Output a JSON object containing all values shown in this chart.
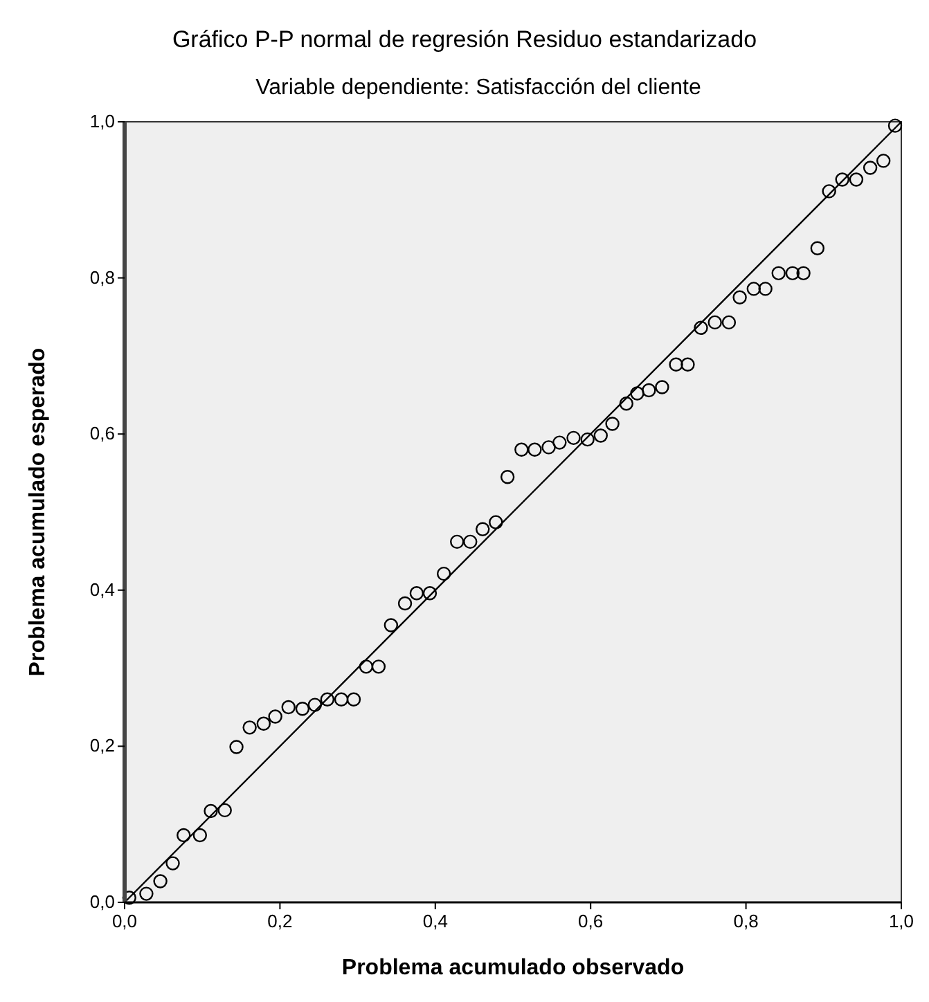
{
  "chart_data": {
    "type": "scatter",
    "title": "Gráfico P-P normal de regresión Residuo estandarizado",
    "subtitle": "Variable dependiente: Satisfacción del cliente",
    "xlabel": "Problema acumulado observado",
    "ylabel": "Problema acumulado esperado",
    "xlim": [
      0,
      1
    ],
    "ylim": [
      0,
      1
    ],
    "xticks": [
      {
        "value": 0,
        "label": "0,0"
      },
      {
        "value": 0.2,
        "label": "0,2"
      },
      {
        "value": 0.4,
        "label": "0,4"
      },
      {
        "value": 0.6,
        "label": "0,6"
      },
      {
        "value": 0.8,
        "label": "0,8"
      },
      {
        "value": 1,
        "label": "1,0"
      }
    ],
    "yticks": [
      {
        "value": 0,
        "label": "0,0"
      },
      {
        "value": 0.2,
        "label": "0,2"
      },
      {
        "value": 0.4,
        "label": "0,4"
      },
      {
        "value": 0.6,
        "label": "0,6"
      },
      {
        "value": 0.8,
        "label": "0,8"
      },
      {
        "value": 1,
        "label": "1,0"
      }
    ],
    "series": [
      {
        "marker": "circle",
        "color": "#000000",
        "x": [
          0.006,
          0.028,
          0.046,
          0.062,
          0.076,
          0.097,
          0.111,
          0.129,
          0.144,
          0.161,
          0.179,
          0.194,
          0.211,
          0.229,
          0.245,
          0.261,
          0.279,
          0.295,
          0.311,
          0.327,
          0.343,
          0.361,
          0.376,
          0.393,
          0.411,
          0.428,
          0.445,
          0.461,
          0.478,
          0.493,
          0.511,
          0.528,
          0.546,
          0.56,
          0.578,
          0.596,
          0.613,
          0.628,
          0.646,
          0.66,
          0.675,
          0.692,
          0.71,
          0.725,
          0.742,
          0.76,
          0.778,
          0.792,
          0.81,
          0.825,
          0.842,
          0.86,
          0.874,
          0.892,
          0.907,
          0.924,
          0.942,
          0.96,
          0.977,
          0.992
        ],
        "values": [
          0.006,
          0.011,
          0.027,
          0.05,
          0.086,
          0.086,
          0.117,
          0.118,
          0.199,
          0.224,
          0.229,
          0.238,
          0.25,
          0.248,
          0.253,
          0.26,
          0.26,
          0.26,
          0.302,
          0.302,
          0.355,
          0.383,
          0.396,
          0.396,
          0.421,
          0.462,
          0.462,
          0.478,
          0.487,
          0.545,
          0.58,
          0.58,
          0.583,
          0.589,
          0.595,
          0.593,
          0.598,
          0.613,
          0.639,
          0.652,
          0.656,
          0.66,
          0.689,
          0.689,
          0.736,
          0.743,
          0.743,
          0.775,
          0.786,
          0.786,
          0.806,
          0.806,
          0.806,
          0.838,
          0.911,
          0.926,
          0.926,
          0.941,
          0.95,
          0.995
        ]
      },
      {
        "type": "line",
        "color": "#000000",
        "x": [
          0,
          1
        ],
        "values": [
          0,
          1
        ]
      }
    ]
  }
}
